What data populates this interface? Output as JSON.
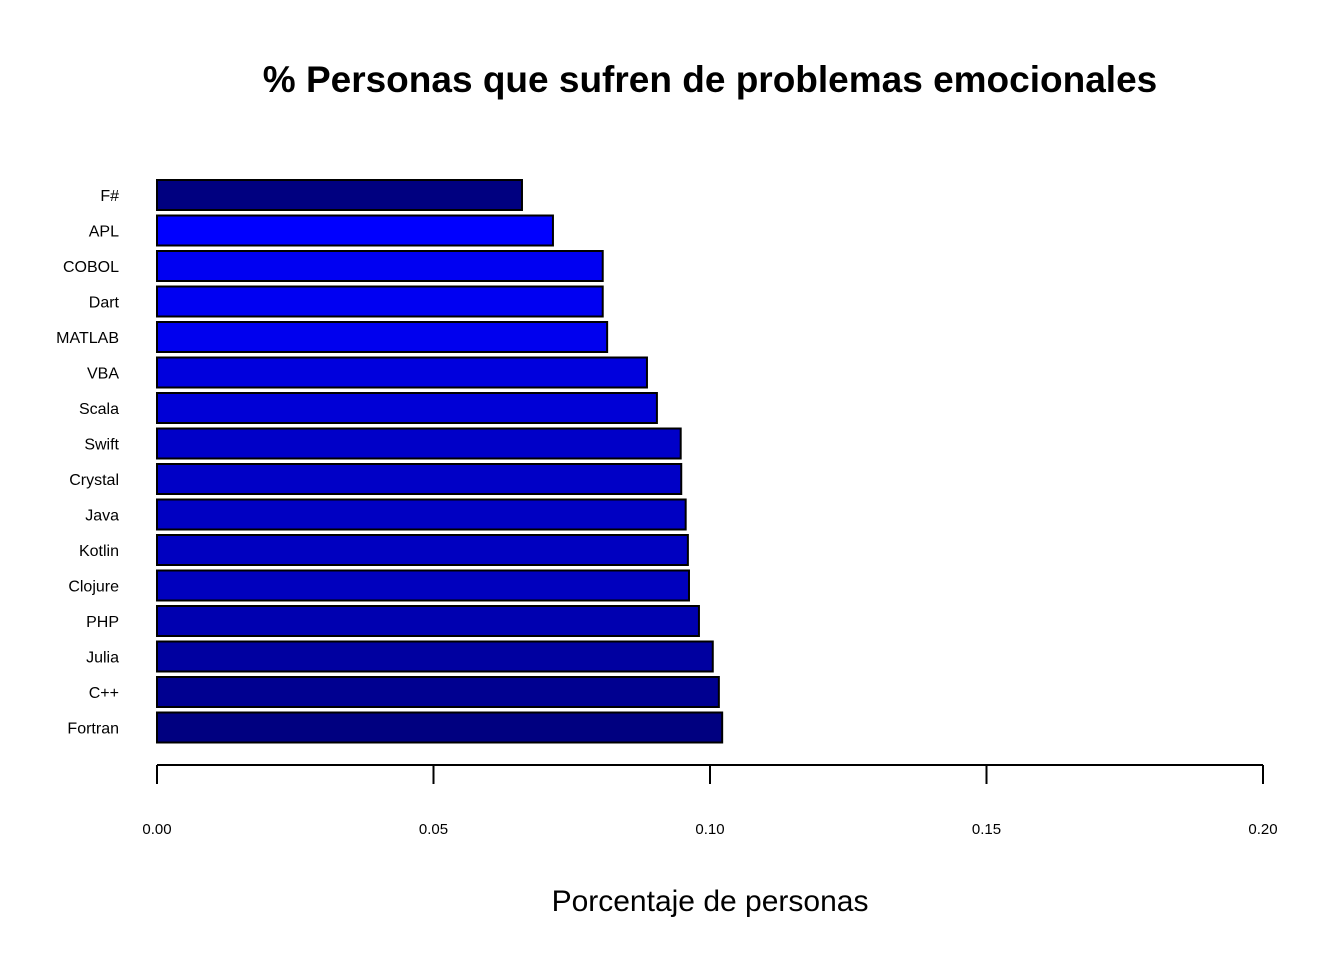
{
  "chart_data": {
    "type": "bar",
    "orientation": "horizontal",
    "title": "% Personas que sufren de problemas emocionales",
    "xlabel": "Porcentaje de personas",
    "ylabel": "",
    "xlim": [
      0,
      0.2
    ],
    "xticks": [
      "0.00",
      "0.05",
      "0.10",
      "0.15",
      "0.20"
    ],
    "grid": false,
    "legend": "none",
    "categories": [
      "F#",
      "APL",
      "COBOL",
      "Dart",
      "MATLAB",
      "VBA",
      "Scala",
      "Swift",
      "Crystal",
      "Java",
      "Kotlin",
      "Clojure",
      "PHP",
      "Julia",
      "C++",
      "Fortran"
    ],
    "values": [
      0.066,
      0.0716,
      0.0806,
      0.0806,
      0.0814,
      0.0886,
      0.0904,
      0.0947,
      0.0948,
      0.0956,
      0.096,
      0.0962,
      0.098,
      0.1005,
      0.1016,
      0.1022
    ],
    "colors": [
      "#000080",
      "#0000ff",
      "#0000f2",
      "#0000f2",
      "#0000ee",
      "#0000dd",
      "#0000d6",
      "#0000c8",
      "#0000c6",
      "#0000c2",
      "#0000c0",
      "#0000be",
      "#0000b0",
      "#0000a0",
      "#000090",
      "#000080"
    ]
  }
}
